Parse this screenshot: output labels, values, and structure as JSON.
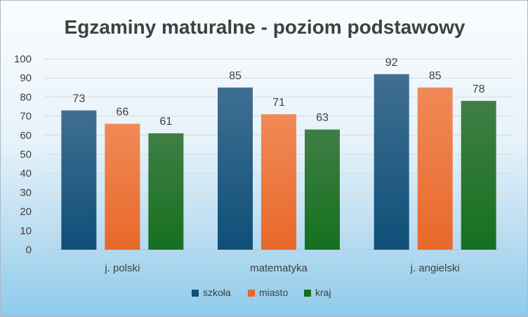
{
  "chart_data": {
    "type": "bar",
    "title": "Egzaminy maturalne - poziom podstawowy",
    "categories": [
      "j. polski",
      "matematyka",
      "j. angielski"
    ],
    "series": [
      {
        "name": "szkoła",
        "values": [
          73,
          85,
          92
        ],
        "color": "#0f4f78"
      },
      {
        "name": "miasto",
        "values": [
          66,
          71,
          85
        ],
        "color": "#e8682a"
      },
      {
        "name": "kraj",
        "values": [
          61,
          63,
          78
        ],
        "color": "#15701f"
      }
    ],
    "ylim": [
      0,
      100
    ],
    "yticks": [
      0,
      10,
      20,
      30,
      40,
      50,
      60,
      70,
      80,
      90,
      100
    ],
    "grid": true,
    "legend": "bottom",
    "data_labels": true
  }
}
